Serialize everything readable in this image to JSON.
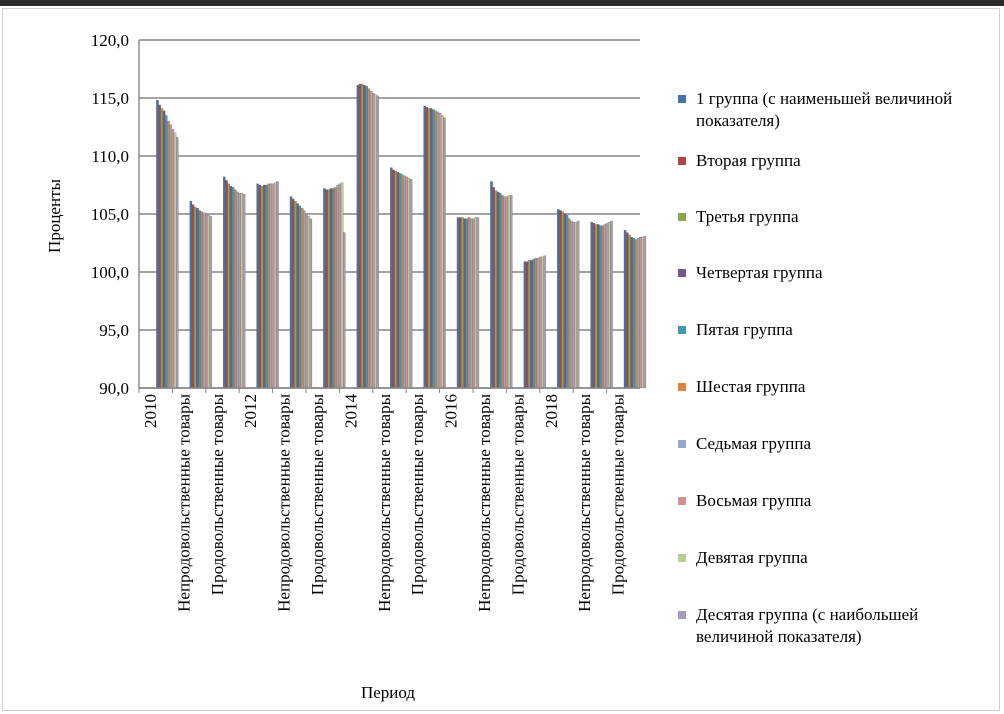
{
  "chart_data": {
    "type": "bar",
    "title": "",
    "xlabel": "Период",
    "ylabel": "Проценты",
    "ylim": [
      90,
      120
    ],
    "yticks": [
      "90,0",
      "95,0",
      "100,0",
      "105,0",
      "110,0",
      "115,0",
      "120,0"
    ],
    "grid": true,
    "legend_position": "right",
    "categories": [
      "2010",
      "Непродовольственные товары",
      "Продовольственные товары",
      "2012",
      "Непродовольственные товары",
      "Продовольственные товары",
      "2014",
      "Непродовольственные товары",
      "Продовольственные товары",
      "2016",
      "Непродовольственные товары",
      "Продовольственные товары",
      "2018",
      "Непродовольственные товары",
      "Продовольственные товары"
    ],
    "series": [
      {
        "name": "1 группа (с наименьшей величиной показателя)",
        "color": "#4572A7",
        "values": [
          114.8,
          106.1,
          108.2,
          107.6,
          106.5,
          107.2,
          116.1,
          109.0,
          114.3,
          104.7,
          107.8,
          100.9,
          105.4,
          104.3,
          103.6
        ]
      },
      {
        "name": "Вторая группа",
        "color": "#AA4643",
        "values": [
          114.4,
          105.8,
          107.9,
          107.5,
          106.3,
          107.1,
          116.2,
          108.8,
          114.2,
          104.7,
          107.3,
          100.9,
          105.3,
          104.2,
          103.4
        ]
      },
      {
        "name": "Третья группа",
        "color": "#89A54E",
        "values": [
          114.1,
          105.6,
          107.6,
          107.4,
          106.1,
          107.1,
          116.2,
          108.7,
          114.1,
          104.7,
          107.0,
          101.0,
          105.2,
          104.1,
          103.2
        ]
      },
      {
        "name": "Четвертая группа",
        "color": "#71588F",
        "values": [
          113.9,
          105.5,
          107.4,
          107.5,
          105.9,
          107.2,
          116.1,
          108.6,
          114.1,
          104.6,
          106.9,
          101.0,
          105.0,
          104.1,
          103.0
        ]
      },
      {
        "name": "Пятая группа",
        "color": "#4198AF",
        "values": [
          113.5,
          105.3,
          107.3,
          107.5,
          105.7,
          107.2,
          116.0,
          108.5,
          114.0,
          104.6,
          106.8,
          101.1,
          104.9,
          104.0,
          102.9
        ]
      },
      {
        "name": "Шестая группа",
        "color": "#DB843D",
        "values": [
          113.0,
          105.2,
          107.1,
          107.6,
          105.5,
          107.3,
          115.8,
          108.4,
          113.9,
          104.7,
          106.6,
          101.2,
          104.6,
          104.0,
          102.8
        ]
      },
      {
        "name": "Седьмая группа",
        "color": "#93A9CF",
        "values": [
          112.7,
          105.1,
          106.9,
          107.6,
          105.3,
          107.5,
          115.6,
          108.3,
          113.8,
          104.6,
          106.5,
          101.2,
          104.4,
          104.1,
          102.9
        ]
      },
      {
        "name": "Восьмая группа",
        "color": "#D19392",
        "values": [
          112.3,
          105.0,
          106.8,
          107.6,
          105.0,
          107.6,
          115.4,
          108.2,
          113.7,
          104.6,
          106.5,
          101.3,
          104.3,
          104.2,
          103.0
        ]
      },
      {
        "name": "Девятая группа",
        "color": "#B9CD96",
        "values": [
          112.0,
          104.9,
          106.8,
          107.7,
          104.8,
          107.7,
          115.3,
          108.1,
          113.5,
          104.7,
          106.6,
          101.3,
          104.3,
          104.3,
          103.0
        ]
      },
      {
        "name": "Десятая группа (с наибольшей величиной показателя)",
        "color": "#A99BBD",
        "values": [
          111.6,
          104.8,
          106.7,
          107.8,
          104.6,
          103.4,
          115.2,
          108.0,
          113.3,
          104.7,
          106.6,
          101.4,
          104.4,
          104.4,
          103.1
        ]
      }
    ]
  }
}
